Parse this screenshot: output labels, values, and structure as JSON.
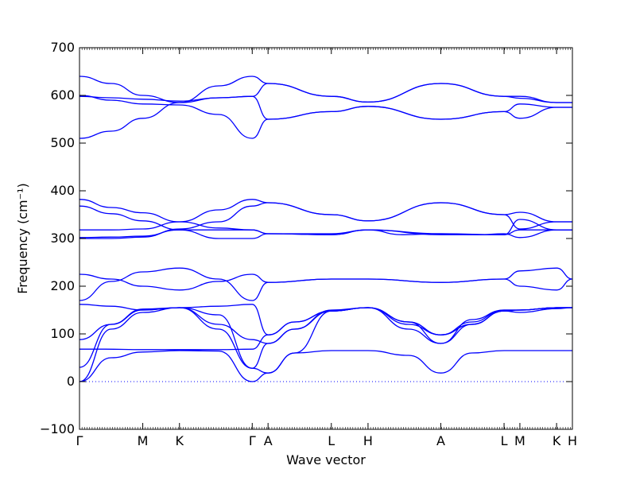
{
  "chart_data": {
    "type": "line",
    "xlabel": "Wave vector",
    "ylabel": "Frequency (cm⁻¹)",
    "ylim": [
      -100,
      700
    ],
    "yticks": [
      -100,
      0,
      100,
      200,
      300,
      400,
      500,
      600,
      700
    ],
    "xticks": [
      {
        "label": "Γ",
        "x": 0
      },
      {
        "label": "M",
        "x": 1.0
      },
      {
        "label": "K",
        "x": 1.58
      },
      {
        "label": "Γ",
        "x": 2.73
      },
      {
        "label": "A",
        "x": 2.98
      },
      {
        "label": "L",
        "x": 3.98
      },
      {
        "label": "H",
        "x": 4.56
      },
      {
        "label": "A",
        "x": 5.71
      },
      {
        "label": "L",
        "x": 6.71
      },
      {
        "label": "M",
        "x": 6.96
      },
      {
        "label": "K",
        "x": 7.54
      },
      {
        "label": "H",
        "x": 7.79
      }
    ],
    "xlim": [
      0,
      7.79
    ],
    "zero_line": 0,
    "line_color": "#0000ff",
    "bands": [
      {
        "name": "",
        "points": [
          [
            0,
            0
          ],
          [
            0.5,
            50
          ],
          [
            1.0,
            62
          ],
          [
            1.58,
            65
          ],
          [
            2.2,
            64
          ],
          [
            2.73,
            0
          ],
          [
            2.98,
            18
          ],
          [
            3.4,
            60
          ],
          [
            3.98,
            65
          ],
          [
            4.56,
            65
          ],
          [
            5.2,
            55
          ],
          [
            5.71,
            18
          ],
          [
            6.2,
            60
          ],
          [
            6.71,
            65
          ],
          [
            6.96,
            65
          ],
          [
            7.54,
            65
          ],
          [
            7.79,
            65
          ]
        ]
      },
      {
        "name": "",
        "points": [
          [
            0,
            0
          ],
          [
            0.5,
            110
          ],
          [
            1.0,
            145
          ],
          [
            1.58,
            155
          ],
          [
            2.2,
            110
          ],
          [
            2.73,
            28
          ],
          [
            2.98,
            18
          ],
          [
            3.4,
            60
          ],
          [
            3.98,
            148
          ],
          [
            4.56,
            155
          ],
          [
            5.2,
            110
          ],
          [
            5.71,
            80
          ],
          [
            6.2,
            120
          ],
          [
            6.71,
            148
          ],
          [
            6.96,
            145
          ],
          [
            7.54,
            153
          ],
          [
            7.79,
            155
          ]
        ]
      },
      {
        "name": "",
        "points": [
          [
            0,
            30
          ],
          [
            0.5,
            120
          ],
          [
            1.0,
            150
          ],
          [
            1.58,
            155
          ],
          [
            2.2,
            140
          ],
          [
            2.73,
            28
          ],
          [
            2.98,
            80
          ],
          [
            3.4,
            110
          ],
          [
            3.98,
            150
          ],
          [
            4.56,
            155
          ],
          [
            5.2,
            125
          ],
          [
            5.71,
            98
          ],
          [
            6.2,
            125
          ],
          [
            6.71,
            150
          ],
          [
            6.96,
            150
          ],
          [
            7.54,
            155
          ],
          [
            7.79,
            155
          ]
        ]
      },
      {
        "name": "",
        "points": [
          [
            0,
            88
          ],
          [
            0.5,
            120
          ],
          [
            1.0,
            152
          ],
          [
            1.58,
            155
          ],
          [
            2.2,
            120
          ],
          [
            2.73,
            88
          ],
          [
            2.98,
            80
          ],
          [
            3.4,
            110
          ],
          [
            3.98,
            148
          ],
          [
            4.56,
            155
          ],
          [
            5.2,
            125
          ],
          [
            5.71,
            80
          ],
          [
            6.2,
            130
          ],
          [
            6.71,
            150
          ],
          [
            6.96,
            150
          ],
          [
            7.54,
            155
          ],
          [
            7.79,
            155
          ]
        ]
      },
      {
        "name": "",
        "points": [
          [
            0,
            68
          ],
          [
            0.4,
            68
          ],
          [
            1.0,
            67
          ],
          [
            1.58,
            67
          ],
          [
            2.2,
            67
          ],
          [
            2.73,
            68
          ],
          [
            2.98,
            98
          ],
          [
            3.4,
            125
          ],
          [
            3.98,
            148
          ],
          [
            4.56,
            155
          ],
          [
            5.2,
            120
          ],
          [
            5.71,
            98
          ],
          [
            6.2,
            120
          ],
          [
            6.71,
            148
          ],
          [
            6.96,
            150
          ],
          [
            7.54,
            155
          ],
          [
            7.79,
            155
          ]
        ]
      },
      {
        "name": "",
        "points": [
          [
            0,
            162
          ],
          [
            0.5,
            158
          ],
          [
            1.0,
            150
          ],
          [
            1.58,
            155
          ],
          [
            2.2,
            158
          ],
          [
            2.73,
            162
          ],
          [
            2.98,
            98
          ],
          [
            3.4,
            125
          ],
          [
            3.98,
            148
          ],
          [
            4.56,
            155
          ],
          [
            5.2,
            125
          ],
          [
            5.71,
            98
          ],
          [
            6.2,
            120
          ],
          [
            6.71,
            148
          ],
          [
            6.96,
            150
          ],
          [
            7.54,
            155
          ],
          [
            7.79,
            155
          ]
        ]
      },
      {
        "name": "",
        "points": [
          [
            0,
            225
          ],
          [
            0.5,
            215
          ],
          [
            1.0,
            200
          ],
          [
            1.58,
            192
          ],
          [
            2.2,
            210
          ],
          [
            2.73,
            225
          ],
          [
            2.98,
            208
          ],
          [
            3.98,
            215
          ],
          [
            4.56,
            215
          ],
          [
            5.71,
            208
          ],
          [
            6.71,
            215
          ],
          [
            6.96,
            200
          ],
          [
            7.54,
            192
          ],
          [
            7.79,
            215
          ]
        ]
      },
      {
        "name": "",
        "points": [
          [
            0,
            170
          ],
          [
            0.5,
            210
          ],
          [
            1.0,
            230
          ],
          [
            1.58,
            238
          ],
          [
            2.2,
            215
          ],
          [
            2.73,
            170
          ],
          [
            2.98,
            208
          ],
          [
            3.98,
            215
          ],
          [
            4.56,
            215
          ],
          [
            5.71,
            208
          ],
          [
            6.71,
            215
          ],
          [
            6.96,
            232
          ],
          [
            7.54,
            238
          ],
          [
            7.79,
            215
          ]
        ]
      },
      {
        "name": "",
        "points": [
          [
            0,
            302
          ],
          [
            0.5,
            303
          ],
          [
            1.0,
            305
          ],
          [
            1.58,
            318
          ],
          [
            2.2,
            318
          ],
          [
            2.73,
            318
          ],
          [
            2.98,
            310
          ],
          [
            3.98,
            310
          ],
          [
            4.56,
            318
          ],
          [
            5.1,
            308
          ],
          [
            5.71,
            310
          ],
          [
            6.3,
            308
          ],
          [
            6.71,
            310
          ],
          [
            6.96,
            302
          ],
          [
            7.54,
            318
          ],
          [
            7.79,
            318
          ]
        ]
      },
      {
        "name": "",
        "points": [
          [
            0,
            300
          ],
          [
            0.5,
            300
          ],
          [
            1.0,
            303
          ],
          [
            1.58,
            320
          ],
          [
            2.2,
            335
          ],
          [
            2.73,
            368
          ],
          [
            2.98,
            375
          ],
          [
            3.98,
            350
          ],
          [
            4.56,
            337
          ],
          [
            5.71,
            375
          ],
          [
            6.71,
            350
          ],
          [
            6.96,
            320
          ],
          [
            7.54,
            335
          ],
          [
            7.79,
            335
          ]
        ]
      },
      {
        "name": "",
        "points": [
          [
            0,
            318
          ],
          [
            0.5,
            318
          ],
          [
            1.0,
            320
          ],
          [
            1.58,
            335
          ],
          [
            2.2,
            360
          ],
          [
            2.73,
            382
          ],
          [
            2.98,
            375
          ],
          [
            3.98,
            350
          ],
          [
            4.56,
            337
          ],
          [
            5.71,
            375
          ],
          [
            6.71,
            350
          ],
          [
            6.96,
            355
          ],
          [
            7.54,
            335
          ],
          [
            7.79,
            335
          ]
        ]
      },
      {
        "name": "",
        "points": [
          [
            0,
            368
          ],
          [
            0.5,
            352
          ],
          [
            1.0,
            337
          ],
          [
            1.58,
            318
          ],
          [
            2.2,
            300
          ],
          [
            2.73,
            300
          ],
          [
            2.98,
            310
          ],
          [
            3.98,
            308
          ],
          [
            4.56,
            318
          ],
          [
            5.71,
            308
          ],
          [
            6.71,
            308
          ],
          [
            6.96,
            340
          ],
          [
            7.54,
            318
          ],
          [
            7.79,
            318
          ]
        ]
      },
      {
        "name": "",
        "points": [
          [
            0,
            382
          ],
          [
            0.5,
            365
          ],
          [
            1.0,
            354
          ],
          [
            1.58,
            335
          ],
          [
            2.2,
            322
          ],
          [
            2.73,
            318
          ],
          [
            2.98,
            310
          ],
          [
            3.98,
            308
          ],
          [
            4.56,
            318
          ],
          [
            5.71,
            310
          ],
          [
            6.71,
            308
          ],
          [
            6.96,
            318
          ],
          [
            7.54,
            318
          ],
          [
            7.79,
            318
          ]
        ]
      },
      {
        "name": "",
        "points": [
          [
            0,
            510
          ],
          [
            0.5,
            525
          ],
          [
            1.0,
            552
          ],
          [
            1.58,
            585
          ],
          [
            2.2,
            595
          ],
          [
            2.73,
            598
          ],
          [
            2.98,
            625
          ],
          [
            3.98,
            598
          ],
          [
            4.56,
            586
          ],
          [
            5.71,
            625
          ],
          [
            6.71,
            598
          ],
          [
            6.96,
            598
          ],
          [
            7.54,
            585
          ],
          [
            7.79,
            585
          ]
        ]
      },
      {
        "name": "",
        "points": [
          [
            0,
            598
          ],
          [
            0.5,
            595
          ],
          [
            1.0,
            592
          ],
          [
            1.58,
            588
          ],
          [
            2.2,
            595
          ],
          [
            2.73,
            598
          ],
          [
            2.98,
            550
          ],
          [
            3.98,
            566
          ],
          [
            4.56,
            577
          ],
          [
            5.71,
            550
          ],
          [
            6.71,
            566
          ],
          [
            6.96,
            582
          ],
          [
            7.54,
            575
          ],
          [
            7.79,
            575
          ]
        ]
      },
      {
        "name": "",
        "points": [
          [
            0,
            600
          ],
          [
            0.5,
            590
          ],
          [
            1.0,
            582
          ],
          [
            1.58,
            580
          ],
          [
            2.2,
            560
          ],
          [
            2.73,
            510
          ],
          [
            2.98,
            550
          ],
          [
            3.98,
            566
          ],
          [
            4.56,
            577
          ],
          [
            5.71,
            550
          ],
          [
            6.71,
            566
          ],
          [
            6.96,
            552
          ],
          [
            7.54,
            575
          ],
          [
            7.79,
            575
          ]
        ]
      },
      {
        "name": "",
        "points": [
          [
            0,
            640
          ],
          [
            0.5,
            625
          ],
          [
            1.0,
            600
          ],
          [
            1.58,
            585
          ],
          [
            2.2,
            620
          ],
          [
            2.73,
            640
          ],
          [
            2.98,
            625
          ],
          [
            3.98,
            598
          ],
          [
            4.56,
            586
          ],
          [
            5.71,
            625
          ],
          [
            6.71,
            598
          ],
          [
            6.96,
            594
          ],
          [
            7.54,
            585
          ],
          [
            7.79,
            585
          ]
        ]
      }
    ]
  }
}
